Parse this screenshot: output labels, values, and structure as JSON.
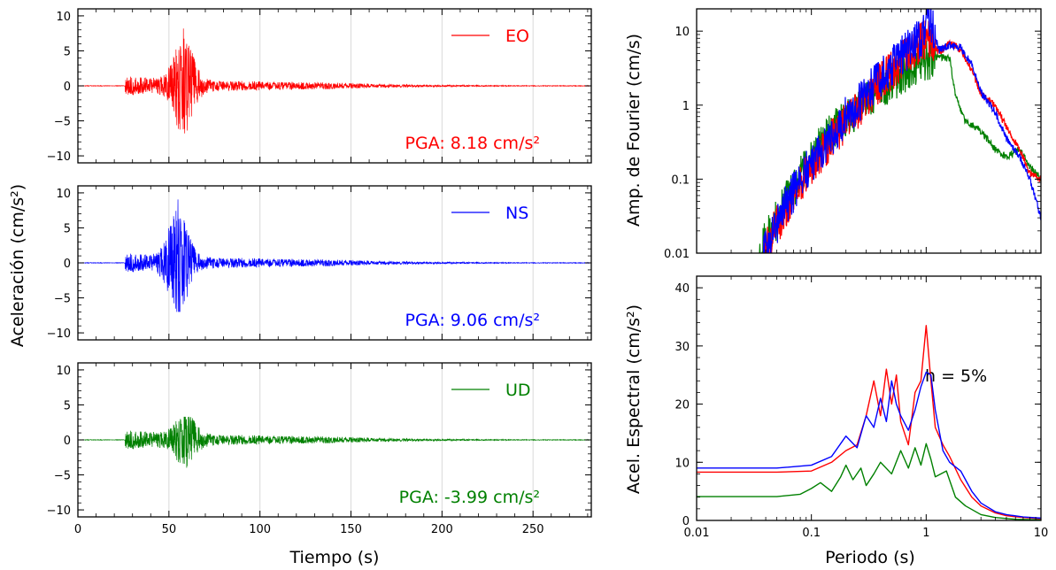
{
  "colors": {
    "EO": "#ff0000",
    "NS": "#0000ff",
    "UD": "#008000",
    "frame": "#000000",
    "grid": "#d9d9d9"
  },
  "left": {
    "ylabel": "Aceleración (cm/s²)",
    "xlabel": "Tiempo (s)"
  },
  "right": {
    "top_ylabel": "Amp. de Fourier (cm/s)",
    "bottom_ylabel": "Acel. Espectral (cm/s²)",
    "xlabel": "Periodo (s)",
    "damping_label": "h = 5%"
  },
  "chart_data": [
    {
      "type": "line",
      "panel": "time-EO",
      "series": [
        {
          "name": "EO",
          "color": "#ff0000",
          "pga": 8.18,
          "onset": 26,
          "peak_time": 58,
          "max": 8.18,
          "min": -6.8
        }
      ],
      "legend": "EO",
      "pga_label": "PGA: 8.18 cm/s²",
      "xlim": [
        0,
        282
      ],
      "ylim": [
        -11,
        11
      ],
      "xticks": [
        0,
        50,
        100,
        150,
        200,
        250
      ],
      "yticks": [
        -10,
        -5,
        0,
        5,
        10
      ],
      "xtick_labels": [
        "",
        "",
        "",
        "",
        "",
        ""
      ],
      "ytick_labels": [
        "−10",
        "−5",
        "0",
        "5",
        "10"
      ],
      "grid": "vertical"
    },
    {
      "type": "line",
      "panel": "time-NS",
      "series": [
        {
          "name": "NS",
          "color": "#0000ff",
          "pga": 9.06,
          "onset": 26,
          "peak_time": 55,
          "max": 9.06,
          "min": -7.0
        }
      ],
      "legend": "NS",
      "pga_label": "PGA: 9.06 cm/s²",
      "xlim": [
        0,
        282
      ],
      "ylim": [
        -11,
        11
      ],
      "xticks": [
        0,
        50,
        100,
        150,
        200,
        250
      ],
      "yticks": [
        -10,
        -5,
        0,
        5,
        10
      ],
      "xtick_labels": [
        "",
        "",
        "",
        "",
        "",
        ""
      ],
      "ytick_labels": [
        "−10",
        "−5",
        "0",
        "5",
        "10"
      ],
      "grid": "vertical"
    },
    {
      "type": "line",
      "panel": "time-UD",
      "series": [
        {
          "name": "UD",
          "color": "#008000",
          "pga": -3.99,
          "onset": 26,
          "peak_time": 59,
          "max": 3.3,
          "min": -3.99
        }
      ],
      "legend": "UD",
      "pga_label": "PGA: -3.99 cm/s²",
      "xlim": [
        0,
        282
      ],
      "ylim": [
        -11,
        11
      ],
      "xticks": [
        0,
        50,
        100,
        150,
        200,
        250
      ],
      "yticks": [
        -10,
        -5,
        0,
        5,
        10
      ],
      "xtick_labels": [
        "0",
        "50",
        "100",
        "150",
        "200",
        "250"
      ],
      "ytick_labels": [
        "−10",
        "−5",
        "0",
        "5",
        "10"
      ],
      "grid": "vertical"
    },
    {
      "type": "line",
      "panel": "fourier",
      "xscale": "log",
      "yscale": "log",
      "xlim": [
        0.01,
        10
      ],
      "ylim": [
        0.01,
        20
      ],
      "xticks": [
        0.01,
        0.1,
        1,
        10
      ],
      "xtick_labels": [
        "",
        "",
        "",
        ""
      ],
      "yticks": [
        0.01,
        0.1,
        1,
        10
      ],
      "ytick_labels": [
        "0.01",
        "0.1",
        "1",
        "10"
      ],
      "series": [
        {
          "name": "EO",
          "color": "#ff0000",
          "x": [
            0.038,
            0.06,
            0.1,
            0.2,
            0.4,
            0.6,
            0.9,
            1.1,
            1.3,
            1.6,
            2.0,
            2.5,
            3.0,
            4.0,
            5.0,
            6.5,
            8.0,
            10.0
          ],
          "y": [
            0.01,
            0.04,
            0.15,
            0.6,
            2.0,
            4.0,
            7.0,
            8.0,
            5.0,
            7.0,
            5.5,
            3.0,
            1.4,
            1.0,
            0.5,
            0.25,
            0.12,
            0.1
          ]
        },
        {
          "name": "NS",
          "color": "#0000ff",
          "x": [
            0.038,
            0.06,
            0.1,
            0.2,
            0.4,
            0.6,
            0.9,
            1.05,
            1.3,
            1.6,
            2.0,
            2.5,
            3.0,
            4.0,
            5.0,
            6.5,
            8.0,
            10.0
          ],
          "y": [
            0.01,
            0.045,
            0.17,
            0.7,
            2.3,
            4.5,
            8.0,
            17.0,
            5.5,
            6.5,
            6.0,
            3.5,
            1.5,
            0.8,
            0.35,
            0.2,
            0.1,
            0.03
          ]
        },
        {
          "name": "UD",
          "color": "#008000",
          "x": [
            0.035,
            0.06,
            0.1,
            0.2,
            0.4,
            0.6,
            0.9,
            1.2,
            1.6,
            1.8,
            2.2,
            3.0,
            4.0,
            5.0,
            6.5,
            8.0,
            10.0
          ],
          "y": [
            0.01,
            0.05,
            0.2,
            0.7,
            1.5,
            2.6,
            3.8,
            4.5,
            4.3,
            1.3,
            0.6,
            0.45,
            0.25,
            0.2,
            0.25,
            0.15,
            0.1
          ]
        }
      ]
    },
    {
      "type": "line",
      "panel": "spectral",
      "xscale": "log",
      "yscale": "linear",
      "xlim": [
        0.01,
        10
      ],
      "ylim": [
        0,
        42
      ],
      "xticks": [
        0.01,
        0.1,
        1,
        10
      ],
      "xtick_labels": [
        "0.01",
        "0.1",
        "1",
        "10"
      ],
      "yticks": [
        0,
        10,
        20,
        30,
        40
      ],
      "ytick_labels": [
        "0",
        "10",
        "20",
        "30",
        "40"
      ],
      "series": [
        {
          "name": "EO",
          "color": "#ff0000",
          "x": [
            0.01,
            0.05,
            0.1,
            0.15,
            0.2,
            0.25,
            0.3,
            0.35,
            0.4,
            0.45,
            0.5,
            0.55,
            0.6,
            0.7,
            0.8,
            0.9,
            1.0,
            1.1,
            1.2,
            1.4,
            1.6,
            2.0,
            2.5,
            3.0,
            4.0,
            5.0,
            7.0,
            10.0
          ],
          "y": [
            8.3,
            8.3,
            8.5,
            10,
            12,
            13,
            18,
            24,
            18,
            26,
            20,
            25,
            17,
            13,
            22,
            24,
            33.5,
            24,
            16,
            13,
            11,
            7,
            4,
            2.5,
            1.3,
            0.8,
            0.5,
            0.3
          ]
        },
        {
          "name": "NS",
          "color": "#0000ff",
          "x": [
            0.01,
            0.05,
            0.1,
            0.15,
            0.2,
            0.25,
            0.3,
            0.35,
            0.4,
            0.45,
            0.5,
            0.55,
            0.6,
            0.7,
            0.8,
            0.9,
            1.0,
            1.1,
            1.2,
            1.4,
            1.6,
            2.0,
            2.5,
            3.0,
            4.0,
            5.0,
            7.0,
            10.0
          ],
          "y": [
            9.0,
            9.0,
            9.5,
            11,
            14.5,
            12.5,
            18,
            16,
            21,
            17,
            24,
            20,
            18,
            15.5,
            19,
            23,
            25.5,
            25,
            19,
            12,
            10,
            8.5,
            5,
            3,
            1.5,
            1,
            0.6,
            0.4
          ]
        },
        {
          "name": "UD",
          "color": "#008000",
          "x": [
            0.01,
            0.05,
            0.08,
            0.1,
            0.12,
            0.15,
            0.18,
            0.2,
            0.23,
            0.27,
            0.3,
            0.35,
            0.4,
            0.5,
            0.6,
            0.7,
            0.8,
            0.9,
            1.0,
            1.1,
            1.2,
            1.5,
            1.8,
            2.2,
            3.0,
            4.0,
            6.0,
            10.0
          ],
          "y": [
            4.1,
            4.1,
            4.5,
            5.5,
            6.5,
            5.0,
            7.5,
            9.5,
            7.0,
            9.0,
            6.0,
            8.0,
            10.0,
            8.0,
            12.0,
            9.0,
            12.5,
            9.5,
            13.2,
            10.5,
            7.5,
            8.5,
            4.0,
            2.5,
            1.0,
            0.5,
            0.2,
            0.1
          ]
        }
      ]
    }
  ]
}
